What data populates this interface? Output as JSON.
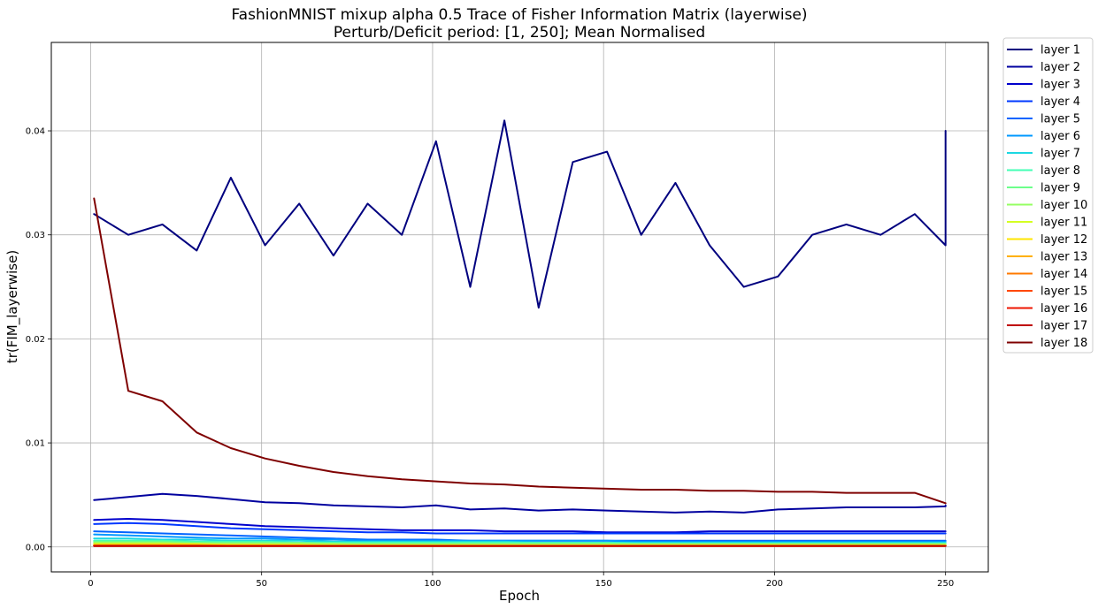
{
  "chart_data": {
    "type": "line",
    "title": "FashionMNIST mixup alpha 0.5 Trace of Fisher Information Matrix (layerwise)",
    "subtitle": "Perturb/Deficit period: [1, 250]; Mean Normalised",
    "xlabel": "Epoch",
    "ylabel": "tr(FIM_layerwise)",
    "xlim": [
      -11.5,
      262.5
    ],
    "ylim": [
      -0.0024,
      0.0485
    ],
    "x_ticks": [
      0,
      50,
      100,
      150,
      200,
      250
    ],
    "x_tick_labels": [
      "0",
      "50",
      "100",
      "150",
      "200",
      "250"
    ],
    "y_ticks": [
      0.0,
      0.01,
      0.02,
      0.03,
      0.04
    ],
    "y_tick_labels": [
      "0.00",
      "0.01",
      "0.02",
      "0.03",
      "0.04"
    ],
    "grid": true,
    "legend_position": "outside-right-top",
    "x_start": 1,
    "x_step": 10,
    "series": [
      {
        "name": "layer 1",
        "color": "#00007f",
        "values": [
          0.032,
          0.03,
          0.031,
          0.0285,
          0.0355,
          0.029,
          0.033,
          0.028,
          0.033,
          0.03,
          0.039,
          0.025,
          0.041,
          0.023,
          0.037,
          0.038,
          0.03,
          0.035,
          0.029,
          0.025,
          0.026,
          0.03,
          0.031,
          0.03,
          0.032,
          0.029,
          0.031,
          0.037,
          0.033,
          0.034,
          0.034,
          0.036,
          0.035,
          0.0365,
          0.034,
          0.039,
          0.037,
          0.036,
          0.033,
          0.038,
          0.033,
          0.035,
          0.0365,
          0.036,
          0.035,
          0.04,
          0.0395,
          0.038,
          0.037,
          0.037,
          0.0375,
          0.035,
          0.036,
          0.038,
          0.038,
          0.039
        ]
      },
      {
        "name": "layer 2",
        "color": "#00009f",
        "values": [
          0.0045,
          0.0048,
          0.0051,
          0.0049,
          0.0046,
          0.0043,
          0.0042,
          0.004,
          0.0039,
          0.0038,
          0.004,
          0.0036,
          0.0037,
          0.0035,
          0.0036,
          0.0035,
          0.0034,
          0.0033,
          0.0034,
          0.0033,
          0.0036,
          0.0037,
          0.0038,
          0.0038,
          0.0038,
          0.0039,
          0.004,
          0.004,
          0.004,
          0.0039
        ]
      },
      {
        "name": "layer 3",
        "color": "#0000cc",
        "values": [
          0.0026,
          0.0027,
          0.0026,
          0.0024,
          0.0022,
          0.002,
          0.0019,
          0.0018,
          0.0017,
          0.0016,
          0.0016,
          0.0016,
          0.0015,
          0.0015,
          0.0015,
          0.0014,
          0.0014,
          0.0014,
          0.0015,
          0.0015,
          0.0015,
          0.0015,
          0.0015,
          0.0015,
          0.0015,
          0.0015
        ]
      },
      {
        "name": "layer 4",
        "color": "#0038ff",
        "values": [
          0.0022,
          0.0023,
          0.0022,
          0.002,
          0.0018,
          0.0017,
          0.0016,
          0.0015,
          0.0014,
          0.0014,
          0.0013,
          0.0013,
          0.0013,
          0.0013,
          0.0013,
          0.0013,
          0.0013,
          0.0013,
          0.0013,
          0.0013,
          0.0013,
          0.0013,
          0.0013,
          0.0013,
          0.0013,
          0.0013
        ]
      },
      {
        "name": "layer 5",
        "color": "#0064ff",
        "values": [
          0.0015,
          0.0014,
          0.0013,
          0.0012,
          0.0011,
          0.001,
          0.0009,
          0.0008,
          0.0007,
          0.0007,
          0.0007,
          0.0006,
          0.0006,
          0.0006,
          0.0006,
          0.0006,
          0.0006,
          0.0006,
          0.0006,
          0.0006,
          0.0006,
          0.0006,
          0.0006,
          0.0006,
          0.0006,
          0.0006
        ]
      },
      {
        "name": "layer 6",
        "color": "#0098ff",
        "values": [
          0.0012,
          0.0011,
          0.001,
          0.0009,
          0.0008,
          0.0008,
          0.0007,
          0.0007,
          0.0006,
          0.0006,
          0.0006,
          0.0006,
          0.0006,
          0.0006,
          0.0006,
          0.0006,
          0.0005,
          0.0005,
          0.0005,
          0.0005,
          0.0005,
          0.0005,
          0.0005,
          0.0005,
          0.0005,
          0.0005
        ]
      },
      {
        "name": "layer 7",
        "color": "#1cd8e2",
        "values": [
          0.0008,
          0.0008,
          0.0007,
          0.0007,
          0.0006,
          0.0006,
          0.0006,
          0.0005,
          0.0005,
          0.0005,
          0.0005,
          0.0005,
          0.0005,
          0.0004,
          0.0004,
          0.0004,
          0.0004,
          0.0004,
          0.0004,
          0.0004,
          0.0004,
          0.0004,
          0.0004,
          0.0004,
          0.0004,
          0.0004
        ]
      },
      {
        "name": "layer 8",
        "color": "#43ffb4",
        "values": [
          0.0006,
          0.0006,
          0.0006,
          0.0005,
          0.0005,
          0.0005,
          0.0004,
          0.0004,
          0.0004,
          0.0004,
          0.0004,
          0.0004,
          0.0004,
          0.0004,
          0.0004,
          0.0004,
          0.0003,
          0.0003,
          0.0003,
          0.0003,
          0.0003,
          0.0003,
          0.0003,
          0.0003,
          0.0003,
          0.0003
        ]
      },
      {
        "name": "layer 9",
        "color": "#6cff8b",
        "values": [
          0.0005,
          0.0005,
          0.0005,
          0.0004,
          0.0004,
          0.0004,
          0.0004,
          0.0003,
          0.0003,
          0.0003,
          0.0003,
          0.0003,
          0.0003,
          0.0003,
          0.0003,
          0.0003,
          0.0003,
          0.0003,
          0.0003,
          0.0003,
          0.0003,
          0.0003,
          0.0003,
          0.0003,
          0.0003,
          0.0003
        ]
      },
      {
        "name": "layer 10",
        "color": "#94ff62",
        "values": [
          0.0004,
          0.0004,
          0.0004,
          0.0003,
          0.0003,
          0.0003,
          0.0003,
          0.0003,
          0.0002,
          0.0002,
          0.0002,
          0.0002,
          0.0002,
          0.0002,
          0.0002,
          0.0002,
          0.0002,
          0.0002,
          0.0002,
          0.0002,
          0.0002,
          0.0002,
          0.0002,
          0.0002,
          0.0002,
          0.0002
        ]
      },
      {
        "name": "layer 11",
        "color": "#d5ff22",
        "values": [
          0.0003,
          0.0003,
          0.0003,
          0.0003,
          0.0002,
          0.0002,
          0.0002,
          0.0002,
          0.0002,
          0.0002,
          0.0002,
          0.0002,
          0.0002,
          0.0002,
          0.0002,
          0.0002,
          0.0002,
          0.0002,
          0.0002,
          0.0002,
          0.0002,
          0.0002,
          0.0002,
          0.0002,
          0.0002,
          0.0002
        ]
      },
      {
        "name": "layer 12",
        "color": "#ffe600",
        "values": [
          0.0002,
          0.0002,
          0.0002,
          0.0002,
          0.0002,
          0.0002,
          0.0002,
          0.0001,
          0.0001,
          0.0001,
          0.0001,
          0.0001,
          0.0001,
          0.0001,
          0.0001,
          0.0001,
          0.0001,
          0.0001,
          0.0001,
          0.0001,
          0.0001,
          0.0001,
          0.0001,
          0.0001,
          0.0001,
          0.0001
        ]
      },
      {
        "name": "layer 13",
        "color": "#ffb000",
        "values": [
          0.0002,
          0.0002,
          0.0002,
          0.0002,
          0.0001,
          0.0001,
          0.0001,
          0.0001,
          0.0001,
          0.0001,
          0.0001,
          0.0001,
          0.0001,
          0.0001,
          0.0001,
          0.0001,
          0.0001,
          0.0001,
          0.0001,
          0.0001,
          0.0001,
          0.0001,
          0.0001,
          0.0001,
          0.0001,
          0.0001
        ]
      },
      {
        "name": "layer 14",
        "color": "#ff7a00",
        "values": [
          0.0001,
          0.0001,
          0.0001,
          0.0001,
          0.0001,
          0.0001,
          0.0001,
          0.0001,
          0.0001,
          0.0001,
          0.0001,
          0.0001,
          0.0001,
          0.0001,
          0.0001,
          0.0001,
          0.0001,
          0.0001,
          0.0001,
          0.0001,
          0.0001,
          0.0001,
          0.0001,
          0.0001,
          0.0001,
          0.0001
        ]
      },
      {
        "name": "layer 15",
        "color": "#ff4700",
        "values": [
          0.0001,
          0.0001,
          0.0001,
          0.0001,
          0.0001,
          0.0001,
          0.0001,
          0.0001,
          0.0001,
          0.0001,
          0.0001,
          0.0001,
          0.0001,
          0.0001,
          0.0001,
          0.0001,
          0.0001,
          0.0001,
          0.0001,
          0.0001,
          0.0001,
          0.0001,
          0.0001,
          0.0001,
          0.0001,
          0.0001
        ]
      },
      {
        "name": "layer 16",
        "color": "#ee1600",
        "values": [
          0.0001,
          0.0001,
          0.0001,
          0.0001,
          0.0001,
          0.0001,
          0.0001,
          0.0001,
          0.0001,
          0.0001,
          0.0001,
          0.0001,
          0.0001,
          0.0001,
          0.0001,
          0.0001,
          0.0001,
          0.0001,
          0.0001,
          0.0001,
          0.0001,
          0.0001,
          0.0001,
          0.0001,
          0.0001,
          0.0001
        ]
      },
      {
        "name": "layer 17",
        "color": "#bf0000",
        "values": [
          0.0001,
          0.0001,
          0.0001,
          0.0001,
          0.0001,
          0.0001,
          0.0001,
          0.0001,
          0.0001,
          0.0001,
          0.0001,
          0.0001,
          0.0001,
          0.0001,
          0.0001,
          0.0001,
          0.0001,
          0.0001,
          0.0001,
          0.0001,
          0.0001,
          0.0001,
          0.0001,
          0.0001,
          0.0001,
          0.0001
        ]
      },
      {
        "name": "layer 18",
        "color": "#7f0000",
        "values": [
          0.0335,
          0.015,
          0.014,
          0.011,
          0.0095,
          0.0085,
          0.0078,
          0.0072,
          0.0068,
          0.0065,
          0.0063,
          0.0061,
          0.006,
          0.0058,
          0.0057,
          0.0056,
          0.0055,
          0.0055,
          0.0054,
          0.0054,
          0.0053,
          0.0053,
          0.0052,
          0.0052,
          0.0052,
          0.0042
        ]
      }
    ]
  }
}
